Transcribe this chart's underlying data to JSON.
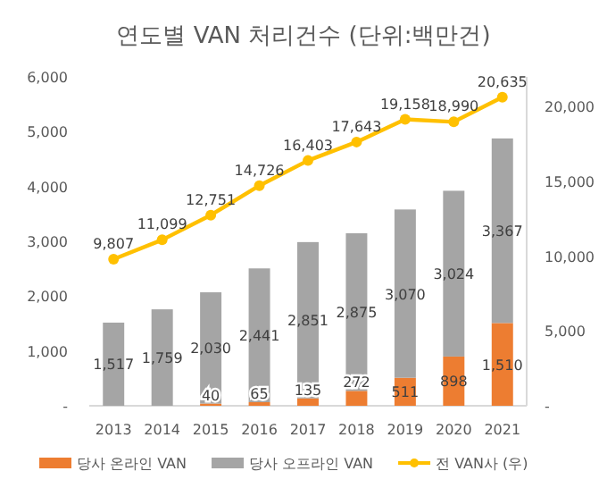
{
  "chart_data": {
    "type": "bar",
    "stacked": true,
    "title": "연도별 VAN 처리건수 (단위:백만건)",
    "categories": [
      "2013",
      "2014",
      "2015",
      "2016",
      "2017",
      "2018",
      "2019",
      "2020",
      "2021"
    ],
    "series": [
      {
        "name": "당사 온라인 VAN",
        "color": "#ed7d31",
        "values": [
          null,
          null,
          40,
          65,
          135,
          272,
          511,
          898,
          1510
        ],
        "value_labels": [
          null,
          null,
          "40",
          "65",
          "135",
          "272",
          "511",
          "898",
          "1,510"
        ]
      },
      {
        "name": "당사 오프라인 VAN",
        "color": "#a5a5a5",
        "values": [
          1517,
          1759,
          2030,
          2441,
          2851,
          2875,
          3070,
          3024,
          3367
        ],
        "value_labels": [
          "1,517",
          "1,759",
          "2,030",
          "2,441",
          "2,851",
          "2,875",
          "3,070",
          "3,024",
          "3,367"
        ]
      },
      {
        "name": "전 VAN사 (우)",
        "type": "line",
        "axis": "y2",
        "color": "#ffc000",
        "marker": "circle",
        "values": [
          9807,
          11099,
          12751,
          14726,
          16403,
          17643,
          19158,
          18990,
          20635
        ],
        "value_labels": [
          "9,807",
          "11,099",
          "12,751",
          "14,726",
          "16,403",
          "17,643",
          "19,158",
          "18,990",
          "20,635"
        ]
      }
    ],
    "ylim": [
      0,
      6000
    ],
    "yticks": [
      {
        "value": 0,
        "label": "-"
      },
      {
        "value": 1000,
        "label": "1,000"
      },
      {
        "value": 2000,
        "label": "2,000"
      },
      {
        "value": 3000,
        "label": "3,000"
      },
      {
        "value": 4000,
        "label": "4,000"
      },
      {
        "value": 5000,
        "label": "5,000"
      },
      {
        "value": 6000,
        "label": "6,000"
      }
    ],
    "y2lim": [
      0,
      22000
    ],
    "y2ticks": [
      {
        "value": 0,
        "label": "-"
      },
      {
        "value": 5000,
        "label": "5,000"
      },
      {
        "value": 10000,
        "label": "10,000"
      },
      {
        "value": 15000,
        "label": "15,000"
      },
      {
        "value": 20000,
        "label": "20,000"
      }
    ],
    "legend": "bottom"
  }
}
